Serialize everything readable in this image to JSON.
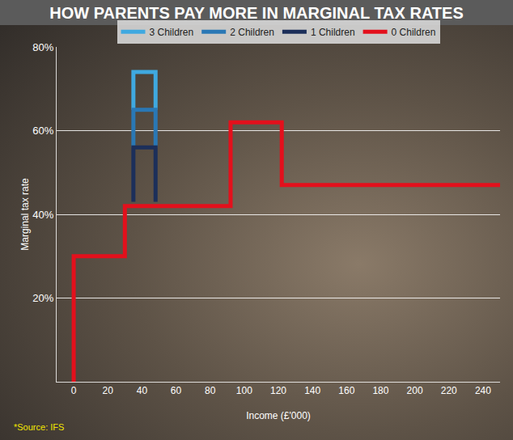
{
  "chart_data": {
    "type": "line",
    "title": "HOW PARENTS PAY MORE IN MARGINAL TAX RATES",
    "x_label": "Income (£'000)",
    "y_label": "Marginal tax rate",
    "source": "*Source: IFS",
    "series": [
      {
        "name": "3 Children",
        "color": "#3fa9e0",
        "x": [
          35,
          35,
          48,
          48
        ],
        "values": [
          65,
          74,
          74,
          65
        ]
      },
      {
        "name": "2 Children",
        "color": "#2a78b5",
        "x": [
          35,
          35,
          48,
          48
        ],
        "values": [
          56,
          65,
          65,
          56
        ]
      },
      {
        "name": "1 Children",
        "color": "#1c2f5a",
        "x": [
          35,
          35,
          48,
          48
        ],
        "values": [
          43,
          56,
          56,
          43
        ]
      },
      {
        "name": "0 Children",
        "color": "#e3101c",
        "x": [
          0,
          0,
          30,
          30,
          92,
          92,
          122,
          122,
          250
        ],
        "values": [
          0,
          30,
          30,
          42,
          42,
          62,
          62,
          47,
          47
        ]
      }
    ],
    "xlim": [
      -10,
      250
    ],
    "xticks": [
      0,
      20,
      40,
      60,
      80,
      100,
      120,
      140,
      160,
      180,
      200,
      220,
      240
    ],
    "ylim": [
      0,
      80
    ],
    "yticks": [
      {
        "value": 20,
        "label": "20%"
      },
      {
        "value": 40,
        "label": "40%"
      },
      {
        "value": 60,
        "label": "60%"
      },
      {
        "value": 80,
        "label": "80%"
      }
    ],
    "grid": true,
    "legend": "top"
  }
}
